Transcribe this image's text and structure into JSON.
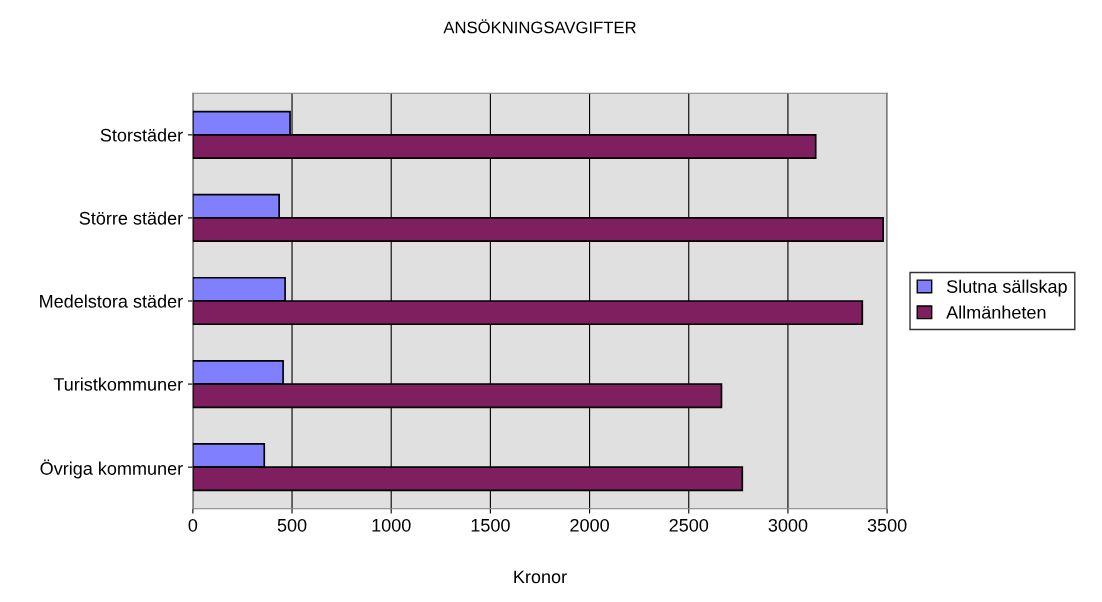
{
  "chart_data": {
    "type": "bar",
    "orientation": "horizontal",
    "title": "ANSÖKNINGSAVGIFTER",
    "xlabel": "Kronor",
    "categories": [
      "Storstäder",
      "Större städer",
      "Medelstora städer",
      "Turistkommuner",
      "Övriga kommuner"
    ],
    "series": [
      {
        "name": "Slutna sällskap",
        "color": "#8080ff",
        "values": [
          490,
          435,
          465,
          455,
          360
        ]
      },
      {
        "name": "Allmänheten",
        "color": "#7f1f5f",
        "values": [
          3140,
          3480,
          3375,
          2665,
          2770
        ]
      }
    ],
    "xlim": [
      0,
      3500
    ],
    "xticks": [
      0,
      500,
      1000,
      1500,
      2000,
      2500,
      3000,
      3500
    ],
    "grid": "x",
    "legend": "right"
  }
}
